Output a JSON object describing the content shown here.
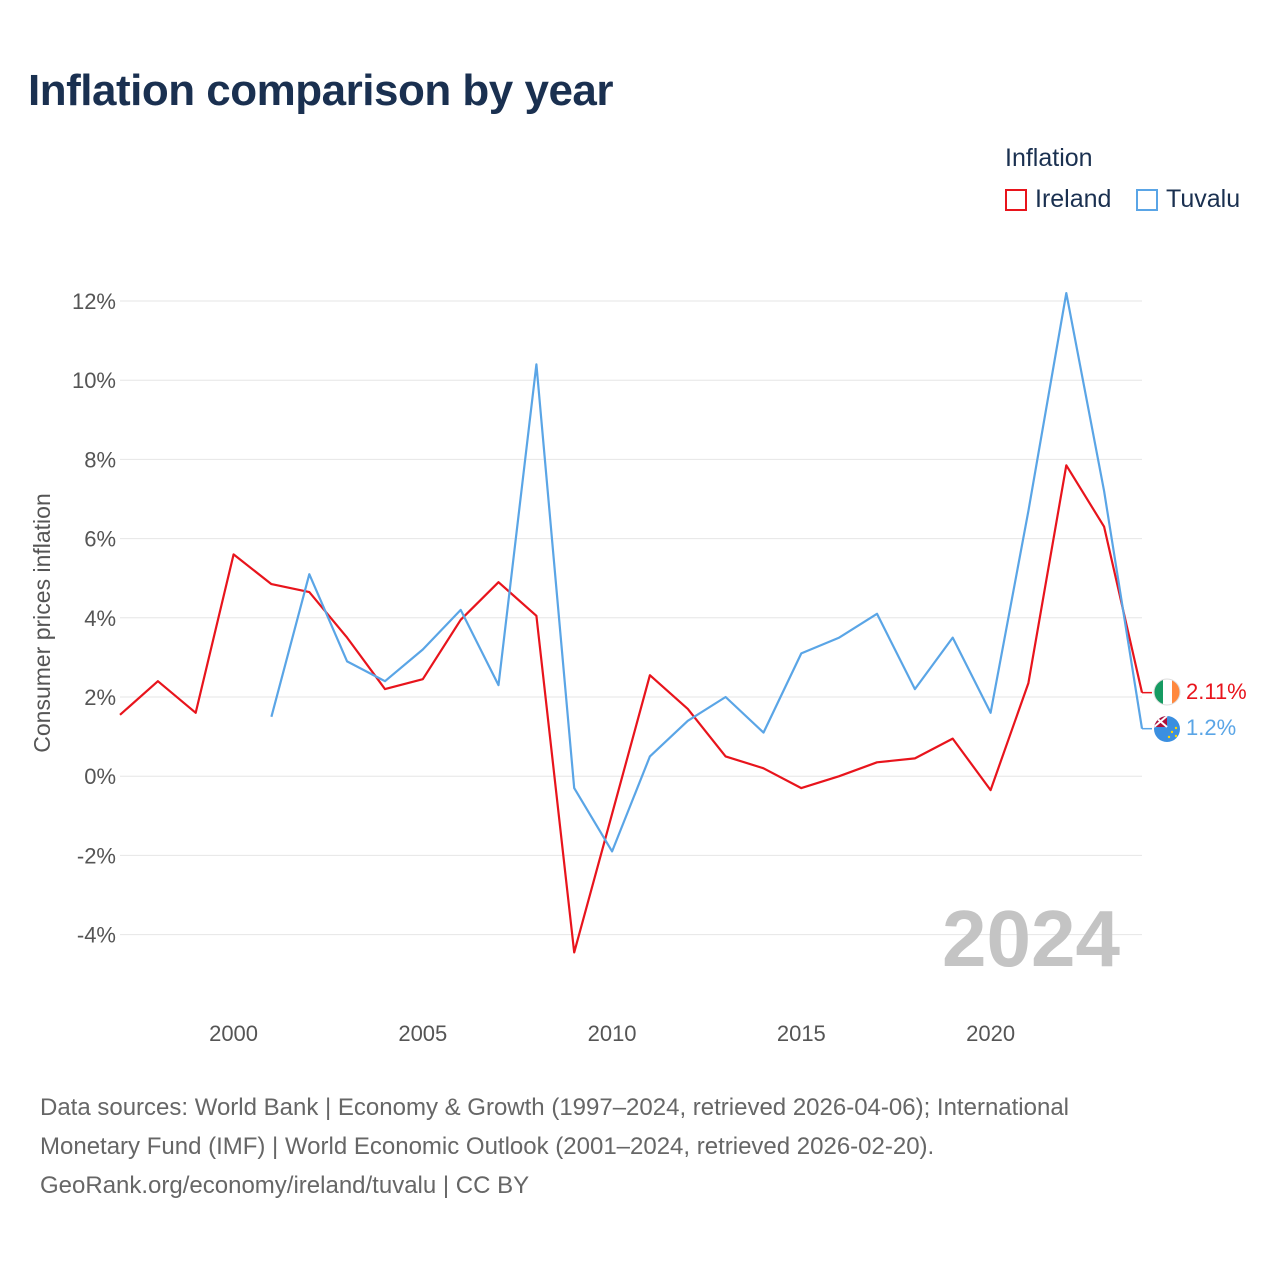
{
  "title": "Inflation comparison by year",
  "legend": {
    "title": "Inflation",
    "items": [
      {
        "label": "Ireland",
        "color": "#e8141c"
      },
      {
        "label": "Tuvalu",
        "color": "#5aa5e6"
      }
    ]
  },
  "sources": {
    "line1": "Data sources: World Bank | Economy & Growth (1997–2024, retrieved 2026-04-06); International",
    "line2": "Monetary Fund (IMF) | World Economic Outlook (2001–2024, retrieved 2026-02-20).",
    "line3": "GeoRank.org/economy/ireland/tuvalu | CC BY"
  },
  "chart_data": {
    "type": "line",
    "title": "Inflation comparison by year",
    "ylabel": "Consumer prices inflation",
    "xlabel": "",
    "xlim": [
      1997,
      2024
    ],
    "ylim": [
      -5,
      12.5
    ],
    "x_ticks": [
      2000,
      2005,
      2010,
      2015,
      2020
    ],
    "y_ticks": [
      12,
      10,
      8,
      6,
      4,
      2,
      0,
      -2,
      -4
    ],
    "y_tick_labels": [
      "12%",
      "10%",
      "8%",
      "6%",
      "4%",
      "2%",
      "0%",
      "-2%",
      "-4%"
    ],
    "year_watermark": "2024",
    "series": [
      {
        "name": "Ireland",
        "color": "#e8141c",
        "end_label": "2.11%",
        "x": [
          1997,
          1998,
          1999,
          2000,
          2001,
          2002,
          2003,
          2004,
          2005,
          2006,
          2007,
          2008,
          2009,
          2010,
          2011,
          2012,
          2013,
          2014,
          2015,
          2016,
          2017,
          2018,
          2019,
          2020,
          2021,
          2022,
          2023,
          2024
        ],
        "values": [
          1.55,
          2.4,
          1.6,
          5.6,
          4.85,
          4.65,
          3.5,
          2.2,
          2.45,
          3.95,
          4.9,
          4.05,
          -4.45,
          -0.95,
          2.55,
          1.7,
          0.5,
          0.2,
          -0.3,
          0.0,
          0.35,
          0.45,
          0.95,
          -0.35,
          2.35,
          7.85,
          6.3,
          2.11
        ]
      },
      {
        "name": "Tuvalu",
        "color": "#5aa5e6",
        "end_label": "1.2%",
        "x": [
          2001,
          2002,
          2003,
          2004,
          2005,
          2006,
          2007,
          2008,
          2009,
          2010,
          2011,
          2012,
          2013,
          2014,
          2015,
          2016,
          2017,
          2018,
          2019,
          2020,
          2021,
          2022,
          2023,
          2024
        ],
        "values": [
          1.5,
          5.1,
          2.9,
          2.4,
          3.2,
          4.2,
          2.3,
          10.4,
          -0.3,
          -1.9,
          0.5,
          1.4,
          2.0,
          1.1,
          3.1,
          3.5,
          4.1,
          2.2,
          3.5,
          1.6,
          6.7,
          12.2,
          7.2,
          1.2
        ]
      }
    ]
  }
}
